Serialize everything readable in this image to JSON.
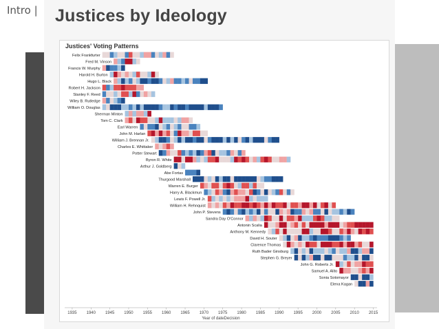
{
  "header": {
    "intro_label": "Intro |"
  },
  "slide": {
    "title": "Justices by Ideology"
  },
  "chart_data": {
    "type": "heatmap",
    "title": "Justices' Voting Patterns",
    "xlabel": "Year of dateDecision",
    "xlim": [
      1933,
      2016
    ],
    "xticks": [
      1935,
      1940,
      1945,
      1950,
      1955,
      1960,
      1965,
      1970,
      1975,
      1980,
      1985,
      1990,
      1995,
      2000,
      2005,
      2010,
      2015
    ],
    "palette": {
      "liberal_dark": "#1f4e8c",
      "liberal": "#4a83be",
      "liberal_light": "#a6c4e0",
      "neutral": "#e8d8d8",
      "conservative_light": "#f0a3a3",
      "conservative": "#e05050",
      "conservative_dark": "#b5162b"
    },
    "justices": [
      {
        "name": "Felix Frankfurter",
        "start": 1943,
        "end": 1962,
        "lean": 0.0
      },
      {
        "name": "Fred M. Vinson",
        "start": 1946,
        "end": 1953,
        "lean": 0.25
      },
      {
        "name": "Francis W. Murphy",
        "start": 1943,
        "end": 1949,
        "lean": -0.6
      },
      {
        "name": "Harold H. Burton",
        "start": 1945,
        "end": 1958,
        "lean": 0.35
      },
      {
        "name": "Hugo L. Black",
        "start": 1946,
        "end": 1971,
        "lean": -0.45
      },
      {
        "name": "Robert H. Jackson",
        "start": 1943,
        "end": 1954,
        "lean": 0.1
      },
      {
        "name": "Stanley F. Reed",
        "start": 1943,
        "end": 1957,
        "lean": 0.2
      },
      {
        "name": "Wiley B. Rutledge",
        "start": 1943,
        "end": 1949,
        "lean": -0.5
      },
      {
        "name": "William O. Douglas",
        "start": 1943,
        "end": 1975,
        "lean": -0.8
      },
      {
        "name": "Sherman Minton",
        "start": 1949,
        "end": 1956,
        "lean": 0.45
      },
      {
        "name": "Tom C. Clark",
        "start": 1949,
        "end": 1967,
        "lean": 0.3
      },
      {
        "name": "Earl Warren",
        "start": 1953,
        "end": 1969,
        "lean": -0.65
      },
      {
        "name": "John M. Harlan",
        "start": 1955,
        "end": 1971,
        "lean": 0.15
      },
      {
        "name": "William J. Brennan Jr.",
        "start": 1956,
        "end": 1990,
        "lean": -0.75
      },
      {
        "name": "Charles E. Whittaker",
        "start": 1957,
        "end": 1962,
        "lean": 0.5
      },
      {
        "name": "Potter Stewart",
        "start": 1958,
        "end": 1981,
        "lean": -0.05
      },
      {
        "name": "Byron R. White",
        "start": 1962,
        "end": 1993,
        "lean": 0.35
      },
      {
        "name": "Arthur J. Goldberg",
        "start": 1962,
        "end": 1965,
        "lean": -0.7
      },
      {
        "name": "Abe Fortas",
        "start": 1965,
        "end": 1969,
        "lean": -0.7
      },
      {
        "name": "Thurgood Marshall",
        "start": 1967,
        "end": 1991,
        "lean": -0.8
      },
      {
        "name": "Warren E. Burger",
        "start": 1969,
        "end": 1986,
        "lean": 0.6
      },
      {
        "name": "Harry A. Blackmun",
        "start": 1970,
        "end": 1994,
        "lean": -0.2
      },
      {
        "name": "Lewis F. Powell Jr.",
        "start": 1971,
        "end": 1987,
        "lean": 0.4
      },
      {
        "name": "William H. Rehnquist",
        "start": 1971,
        "end": 2005,
        "lean": 0.75
      },
      {
        "name": "John P. Stevens",
        "start": 1975,
        "end": 2010,
        "lean": -0.45
      },
      {
        "name": "Sandra Day O'Connor",
        "start": 1981,
        "end": 2006,
        "lean": 0.4
      },
      {
        "name": "Antonin Scalia",
        "start": 1986,
        "end": 2015,
        "lean": 0.8
      },
      {
        "name": "Anthony M. Kennedy",
        "start": 1987,
        "end": 2015,
        "lean": 0.35
      },
      {
        "name": "David H. Souter",
        "start": 1990,
        "end": 2009,
        "lean": -0.35
      },
      {
        "name": "Clarence Thomas",
        "start": 1991,
        "end": 2015,
        "lean": 0.8
      },
      {
        "name": "Ruth Bader Ginsburg",
        "start": 1993,
        "end": 2015,
        "lean": -0.6
      },
      {
        "name": "Stephen G. Breyer",
        "start": 1994,
        "end": 2015,
        "lean": -0.5
      },
      {
        "name": "John G. Roberts Jr.",
        "start": 2005,
        "end": 2015,
        "lean": 0.6
      },
      {
        "name": "Samuel A. Alito",
        "start": 2006,
        "end": 2015,
        "lean": 0.75
      },
      {
        "name": "Sonia Sotomayor",
        "start": 2009,
        "end": 2015,
        "lean": -0.7
      },
      {
        "name": "Elena Kagan",
        "start": 2010,
        "end": 2015,
        "lean": -0.6
      }
    ]
  }
}
